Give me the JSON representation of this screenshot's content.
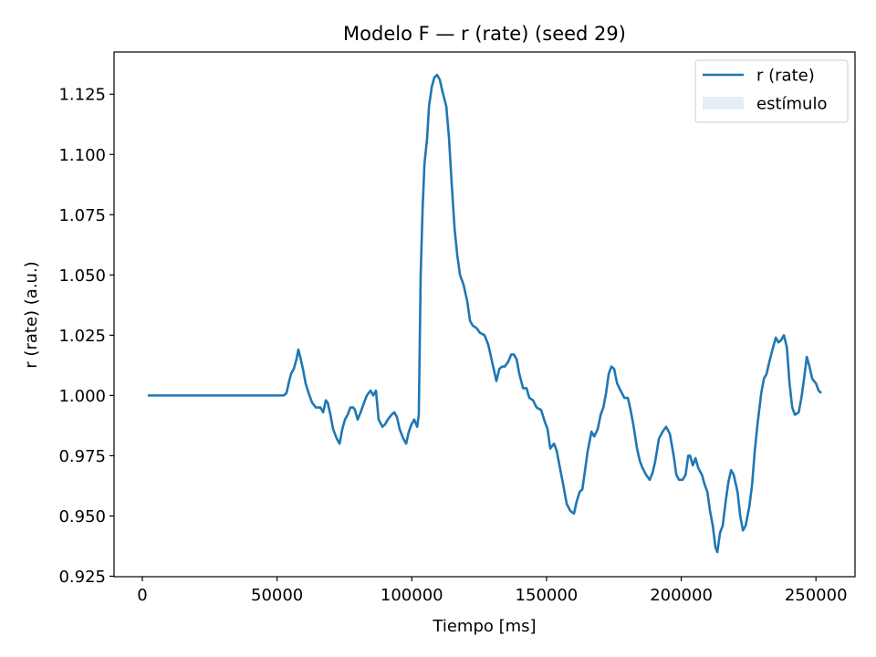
{
  "chart_data": {
    "type": "line",
    "title": "Modelo F — r (rate) (seed 29)",
    "xlabel": "Tiempo [ms]",
    "ylabel": "r (rate) (a.u.)",
    "x": [
      2000,
      52500,
      53500,
      54500,
      55200,
      56200,
      57200,
      57900,
      58600,
      59600,
      60600,
      61700,
      63000,
      64400,
      66100,
      67100,
      68100,
      68800,
      69800,
      70800,
      72200,
      73200,
      74200,
      75200,
      76200,
      77200,
      78300,
      78900,
      79900,
      81000,
      82300,
      83300,
      84700,
      85700,
      86700,
      87700,
      89100,
      90100,
      91100,
      92500,
      93500,
      94500,
      95500,
      96900,
      97900,
      98900,
      99900,
      100900,
      102000,
      102600,
      103300,
      104000,
      104700,
      105700,
      106400,
      107400,
      108400,
      109400,
      110400,
      111400,
      112800,
      113800,
      114800,
      115900,
      116900,
      117900,
      119200,
      120600,
      121600,
      122600,
      124000,
      125300,
      127000,
      128400,
      129400,
      130400,
      131400,
      132500,
      133500,
      134500,
      135800,
      136900,
      137900,
      138900,
      139900,
      141300,
      142600,
      143600,
      145000,
      146300,
      148000,
      149400,
      150400,
      151400,
      152800,
      153800,
      154800,
      156200,
      157500,
      158900,
      160200,
      161200,
      162300,
      163300,
      164300,
      165300,
      166700,
      167700,
      169000,
      170100,
      171100,
      172100,
      173100,
      174100,
      175100,
      176200,
      177500,
      178900,
      180200,
      181200,
      182200,
      183600,
      184600,
      185600,
      187000,
      188300,
      189400,
      190400,
      191700,
      193100,
      194400,
      195800,
      197200,
      198200,
      199200,
      200500,
      201600,
      202600,
      203300,
      204300,
      205300,
      206300,
      207700,
      208700,
      209700,
      210700,
      211700,
      212700,
      213400,
      214400,
      215400,
      216500,
      217500,
      218500,
      219500,
      220900,
      221900,
      222900,
      223900,
      225300,
      226300,
      227300,
      228300,
      229700,
      230700,
      231700,
      232700,
      234100,
      235100,
      236100,
      237100,
      238100,
      239200,
      240200,
      241200,
      242200,
      243600,
      244600,
      245600,
      246600,
      247600,
      248600,
      250000,
      251000,
      252000
    ],
    "series": [
      {
        "name": "r (rate)",
        "color": "#1f77b4",
        "values": [
          1.0,
          1.0,
          1.001,
          1.006,
          1.009,
          1.011,
          1.015,
          1.019,
          1.016,
          1.011,
          1.005,
          1.001,
          0.997,
          0.995,
          0.995,
          0.993,
          0.998,
          0.997,
          0.992,
          0.986,
          0.982,
          0.98,
          0.986,
          0.99,
          0.992,
          0.995,
          0.995,
          0.994,
          0.99,
          0.993,
          0.997,
          1.0,
          1.002,
          1.0,
          1.002,
          0.99,
          0.987,
          0.988,
          0.99,
          0.992,
          0.993,
          0.991,
          0.986,
          0.982,
          0.98,
          0.985,
          0.988,
          0.99,
          0.987,
          0.992,
          1.05,
          1.077,
          1.096,
          1.107,
          1.12,
          1.128,
          1.132,
          1.133,
          1.131,
          1.126,
          1.12,
          1.107,
          1.088,
          1.069,
          1.058,
          1.05,
          1.046,
          1.039,
          1.031,
          1.029,
          1.028,
          1.026,
          1.025,
          1.021,
          1.016,
          1.011,
          1.006,
          1.011,
          1.012,
          1.012,
          1.014,
          1.017,
          1.017,
          1.015,
          1.009,
          1.003,
          1.003,
          0.999,
          0.998,
          0.995,
          0.994,
          0.989,
          0.986,
          0.978,
          0.98,
          0.977,
          0.971,
          0.963,
          0.955,
          0.952,
          0.951,
          0.956,
          0.96,
          0.961,
          0.969,
          0.977,
          0.985,
          0.983,
          0.986,
          0.992,
          0.995,
          1.001,
          1.009,
          1.012,
          1.011,
          1.005,
          1.002,
          0.999,
          0.999,
          0.994,
          0.988,
          0.978,
          0.973,
          0.97,
          0.967,
          0.965,
          0.968,
          0.973,
          0.982,
          0.985,
          0.987,
          0.984,
          0.975,
          0.967,
          0.965,
          0.965,
          0.967,
          0.975,
          0.975,
          0.971,
          0.974,
          0.97,
          0.967,
          0.963,
          0.96,
          0.952,
          0.946,
          0.937,
          0.935,
          0.943,
          0.946,
          0.956,
          0.964,
          0.969,
          0.967,
          0.96,
          0.95,
          0.944,
          0.946,
          0.954,
          0.963,
          0.977,
          0.988,
          1.001,
          1.007,
          1.009,
          1.014,
          1.02,
          1.024,
          1.022,
          1.023,
          1.025,
          1.02,
          1.005,
          0.995,
          0.992,
          0.993,
          0.999,
          1.007,
          1.016,
          1.012,
          1.007,
          1.005,
          1.002,
          1.001
        ]
      }
    ],
    "spans": [
      {
        "name": "estímulo",
        "color": "#1f77b4",
        "alpha": 0.12
      }
    ],
    "xlim": [
      -10500,
      264500
    ],
    "xticks": [
      0,
      50000,
      100000,
      150000,
      200000,
      250000
    ],
    "ylim": [
      0.9248,
      1.1425
    ],
    "yticks": [
      0.925,
      {
        "value": 0.95,
        "label": "0.950"
      },
      0.975,
      {
        "value": 1,
        "label": "1.000"
      },
      1.025,
      {
        "value": 1.05,
        "label": "1.050"
      },
      1.075,
      {
        "value": 1.1,
        "label": "1.100"
      },
      1.125
    ],
    "legend": "upper right"
  }
}
